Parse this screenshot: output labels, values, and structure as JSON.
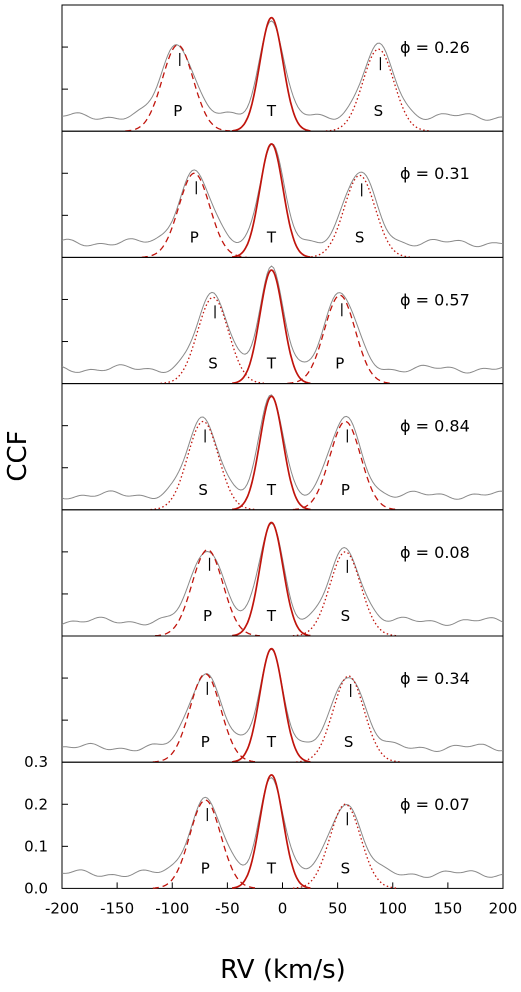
{
  "chart_data": {
    "type": "line",
    "xlabel": "RV (km/s)",
    "ylabel": "CCF",
    "xlim": [
      -200,
      200
    ],
    "ylim": [
      0.0,
      0.3
    ],
    "x_ticks": [
      "-200",
      "-150",
      "-100",
      "-50",
      "0",
      "50",
      "100",
      "150",
      "200"
    ],
    "y_ticks": [
      "0.0",
      "0.1",
      "0.2",
      "0.3"
    ],
    "shared_y_axis_labels_on_bottom_panel_only": true,
    "colors": {
      "fit": "#c0140c",
      "observed": "#8a8a8a"
    },
    "component_label_T": "T",
    "panels": [
      {
        "phase_label": "ϕ = 0.26",
        "left": {
          "label": "P",
          "center": -95,
          "height": 0.205,
          "sigma": 14,
          "style": "dashed"
        },
        "tertiary": {
          "center": -10,
          "height": 0.27,
          "sigma": 10.5
        },
        "right": {
          "label": "S",
          "center": 87,
          "height": 0.195,
          "sigma": 14,
          "style": "dotted"
        }
      },
      {
        "phase_label": "ϕ = 0.31",
        "left": {
          "label": "P",
          "center": -80,
          "height": 0.2,
          "sigma": 14,
          "style": "dashed"
        },
        "tertiary": {
          "center": -10,
          "height": 0.27,
          "sigma": 10.5
        },
        "right": {
          "label": "S",
          "center": 70,
          "height": 0.195,
          "sigma": 14,
          "style": "dotted"
        }
      },
      {
        "phase_label": "ϕ = 0.57",
        "left": {
          "label": "S",
          "center": -63,
          "height": 0.205,
          "sigma": 14,
          "style": "dotted"
        },
        "tertiary": {
          "center": -10,
          "height": 0.27,
          "sigma": 10.5
        },
        "right": {
          "label": "P",
          "center": 52,
          "height": 0.21,
          "sigma": 14,
          "style": "dashed"
        }
      },
      {
        "phase_label": "ϕ = 0.84",
        "left": {
          "label": "S",
          "center": -72,
          "height": 0.21,
          "sigma": 14,
          "style": "dotted"
        },
        "tertiary": {
          "center": -10,
          "height": 0.27,
          "sigma": 10.5
        },
        "right": {
          "label": "P",
          "center": 57,
          "height": 0.21,
          "sigma": 14,
          "style": "dashed"
        }
      },
      {
        "phase_label": "ϕ = 0.08",
        "left": {
          "label": "P",
          "center": -68,
          "height": 0.205,
          "sigma": 14,
          "style": "dashed"
        },
        "tertiary": {
          "center": -10,
          "height": 0.27,
          "sigma": 10.5
        },
        "right": {
          "label": "S",
          "center": 57,
          "height": 0.2,
          "sigma": 14,
          "style": "dotted"
        }
      },
      {
        "phase_label": "ϕ = 0.34",
        "left": {
          "label": "P",
          "center": -70,
          "height": 0.21,
          "sigma": 14,
          "style": "dashed"
        },
        "tertiary": {
          "center": -10,
          "height": 0.27,
          "sigma": 10.5
        },
        "right": {
          "label": "S",
          "center": 60,
          "height": 0.205,
          "sigma": 14,
          "style": "dotted"
        }
      },
      {
        "phase_label": "ϕ = 0.07",
        "left": {
          "label": "P",
          "center": -70,
          "height": 0.21,
          "sigma": 14,
          "style": "dashed"
        },
        "tertiary": {
          "center": -10,
          "height": 0.27,
          "sigma": 10.5
        },
        "right": {
          "label": "S",
          "center": 57,
          "height": 0.2,
          "sigma": 14,
          "style": "dotted"
        }
      }
    ]
  }
}
